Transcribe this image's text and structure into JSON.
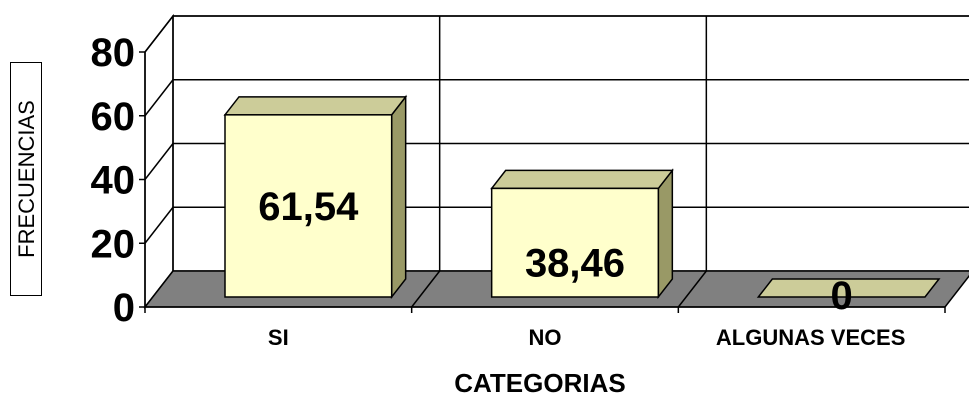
{
  "chart_data": {
    "type": "bar",
    "style": "3d",
    "categories": [
      "SI",
      "NO",
      "ALGUNAS VECES"
    ],
    "values": [
      61.54,
      38.46,
      0
    ],
    "data_labels": [
      "61,54",
      "38,46",
      "0"
    ],
    "title": "",
    "xlabel": "CATEGORIAS",
    "ylabel": "FRECUENCIAS",
    "ylim": [
      0,
      80
    ],
    "yticks": [
      "0",
      "20",
      "40",
      "60",
      "80"
    ],
    "grid": true,
    "colors": {
      "bar_front": "#FFFFCC",
      "bar_top": "#CCCC99",
      "bar_side": "#999966",
      "floor": "#808080",
      "grid": "#000000"
    }
  }
}
